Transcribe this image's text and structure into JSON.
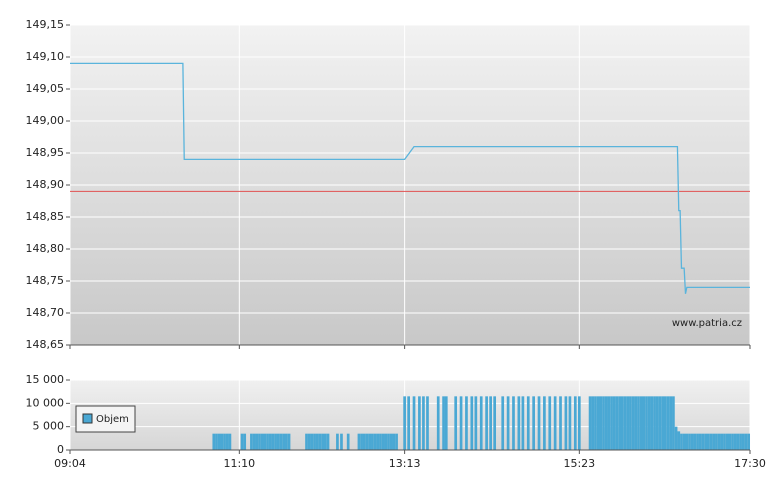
{
  "chart_data": [
    {
      "type": "line",
      "x": [
        "09:04",
        "10:28",
        "10:29",
        "13:13",
        "13:20",
        "16:36",
        "16:37",
        "16:38",
        "16:39",
        "16:41",
        "16:42",
        "16:43",
        "17:30"
      ],
      "values": [
        149.09,
        149.09,
        148.94,
        148.94,
        148.96,
        148.96,
        148.86,
        148.86,
        148.77,
        148.77,
        148.73,
        148.74,
        148.74
      ],
      "color": "#5ab4dc",
      "xlim": [
        "09:04",
        "17:30"
      ],
      "ylim": [
        148.65,
        149.15
      ],
      "yticks": [
        {
          "value": 148.65,
          "label": "148,65"
        },
        {
          "value": 148.7,
          "label": "148,70"
        },
        {
          "value": 148.75,
          "label": "148,75"
        },
        {
          "value": 148.8,
          "label": "148,80"
        },
        {
          "value": 148.85,
          "label": "148,85"
        },
        {
          "value": 148.9,
          "label": "148,90"
        },
        {
          "value": 148.95,
          "label": "148,95"
        },
        {
          "value": 149.0,
          "label": "149,00"
        },
        {
          "value": 149.05,
          "label": "149,05"
        },
        {
          "value": 149.1,
          "label": "149,10"
        },
        {
          "value": 149.15,
          "label": "149,15"
        }
      ],
      "reference_line": {
        "value": 148.89,
        "color": "#e05050"
      },
      "annotation": "www.patria.cz",
      "grid": true
    },
    {
      "type": "bar",
      "x": [
        "10:51",
        "10:53",
        "10:55",
        "10:57",
        "10:59",
        "11:01",
        "11:03",
        "11:12",
        "11:14",
        "11:19",
        "11:21",
        "11:23",
        "11:25",
        "11:27",
        "11:29",
        "11:31",
        "11:33",
        "11:35",
        "11:37",
        "11:39",
        "11:41",
        "11:43",
        "11:45",
        "11:47",
        "12:00",
        "12:02",
        "12:04",
        "12:06",
        "12:08",
        "12:10",
        "12:12",
        "12:14",
        "12:16",
        "12:23",
        "12:26",
        "12:31",
        "12:39",
        "12:41",
        "12:43",
        "12:45",
        "12:47",
        "12:49",
        "12:51",
        "12:53",
        "12:55",
        "12:57",
        "12:59",
        "13:01",
        "13:03",
        "13:05",
        "13:07",
        "13:13",
        "13:16",
        "13:20",
        "13:24",
        "13:27",
        "13:30",
        "13:38",
        "13:42",
        "13:44",
        "13:51",
        "13:55",
        "13:59",
        "14:03",
        "14:06",
        "14:10",
        "14:14",
        "14:17",
        "14:20",
        "14:26",
        "14:30",
        "14:34",
        "14:38",
        "14:41",
        "14:45",
        "14:49",
        "14:53",
        "14:57",
        "15:01",
        "15:05",
        "15:09",
        "15:13",
        "15:16",
        "15:20",
        "15:23",
        "15:31",
        "15:33",
        "15:35",
        "15:37",
        "15:39",
        "15:41",
        "15:43",
        "15:45",
        "15:47",
        "15:49",
        "15:51",
        "15:53",
        "15:55",
        "15:57",
        "15:59",
        "16:01",
        "16:03",
        "16:05",
        "16:07",
        "16:09",
        "16:11",
        "16:13",
        "16:15",
        "16:17",
        "16:19",
        "16:21",
        "16:23",
        "16:25",
        "16:27",
        "16:29",
        "16:31",
        "16:33",
        "16:35",
        "16:37",
        "16:39",
        "16:41",
        "16:43",
        "16:45",
        "16:47",
        "16:49",
        "16:51",
        "16:53",
        "16:55",
        "16:57",
        "16:59",
        "17:01",
        "17:03",
        "17:05",
        "17:07",
        "17:09",
        "17:11",
        "17:13",
        "17:15",
        "17:17",
        "17:19",
        "17:21",
        "17:23",
        "17:25",
        "17:27",
        "17:29"
      ],
      "series": [
        {
          "name": "Objem",
          "color": "#4aa8d4",
          "values": [
            3500,
            3500,
            3500,
            3500,
            3500,
            3500,
            3500,
            3500,
            3500,
            3500,
            3500,
            3500,
            3500,
            3500,
            3500,
            3500,
            3500,
            3500,
            3500,
            3500,
            3500,
            3500,
            3500,
            3500,
            3500,
            3500,
            3500,
            3500,
            3500,
            3500,
            3500,
            3500,
            3500,
            3500,
            3500,
            3500,
            3500,
            3500,
            3500,
            3500,
            3500,
            3500,
            3500,
            3500,
            3500,
            3500,
            3500,
            3500,
            3500,
            3500,
            3500,
            11500,
            11500,
            11500,
            11500,
            11500,
            11500,
            11500,
            11500,
            11500,
            11500,
            11500,
            11500,
            11500,
            11500,
            11500,
            11500,
            11500,
            11500,
            11500,
            11500,
            11500,
            11500,
            11500,
            11500,
            11500,
            11500,
            11500,
            11500,
            11500,
            11500,
            11500,
            11500,
            11500,
            11500,
            11500,
            11500,
            11500,
            11500,
            11500,
            11500,
            11500,
            11500,
            11500,
            11500,
            11500,
            11500,
            11500,
            11500,
            11500,
            11500,
            11500,
            11500,
            11500,
            11500,
            11500,
            11500,
            11500,
            11500,
            11500,
            11500,
            11500,
            11500,
            11500,
            11500,
            11500,
            11500,
            5000,
            4000,
            3500,
            3500,
            3500,
            3500,
            3500,
            3500,
            3500,
            3500,
            3500,
            3500,
            3500,
            3500,
            3500,
            3500,
            3500,
            3500,
            3500,
            3500,
            3500,
            3500,
            3500,
            3500,
            3500,
            3500,
            3500,
            3500
          ]
        }
      ],
      "xlim": [
        "09:04",
        "17:30"
      ],
      "xticks": [
        "09:04",
        "11:10",
        "13:13",
        "15:23",
        "17:30"
      ],
      "ylim": [
        0,
        15000
      ],
      "yticks": [
        0,
        {
          "value": 5000,
          "label": "5 000"
        },
        {
          "value": 10000,
          "label": "10 000"
        },
        {
          "value": 15000,
          "label": "15 000"
        }
      ],
      "grid": true
    }
  ]
}
